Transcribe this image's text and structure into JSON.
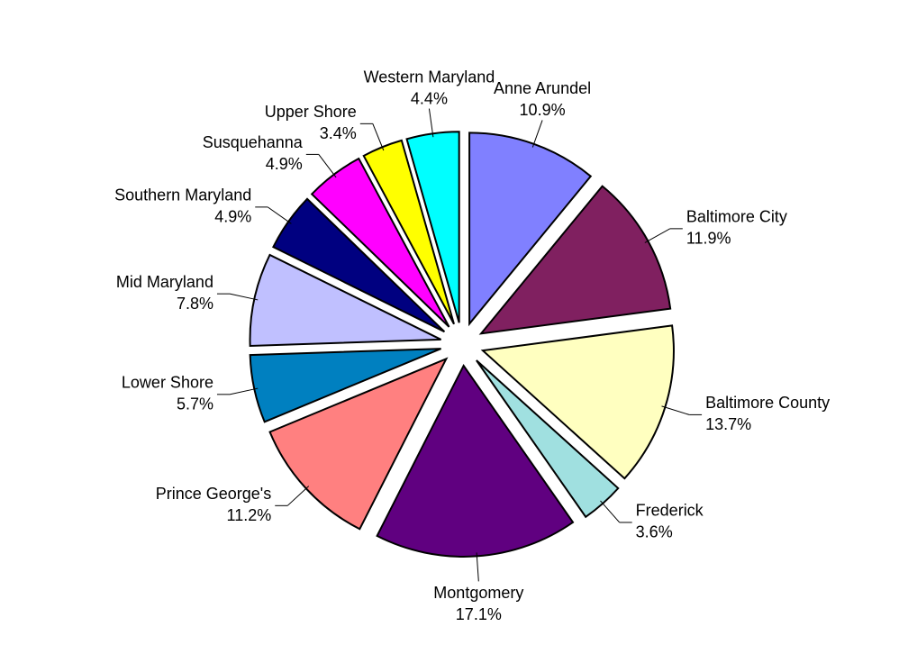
{
  "chart_data": {
    "type": "pie",
    "categories": [
      "Anne Arundel",
      "Baltimore City",
      "Baltimore County",
      "Frederick",
      "Montgomery",
      "Prince George's",
      "Lower Shore",
      "Mid Maryland",
      "Southern Maryland",
      "Susquehanna",
      "Upper Shore",
      "Western Maryland"
    ],
    "values": [
      10.9,
      11.9,
      13.7,
      3.6,
      17.1,
      11.2,
      5.7,
      7.8,
      4.9,
      4.9,
      3.4,
      4.4
    ],
    "value_labels": [
      "10.9%",
      "11.9%",
      "13.7%",
      "3.6%",
      "17.1%",
      "11.2%",
      "5.7%",
      "7.8%",
      "4.9%",
      "4.9%",
      "3.4%",
      "4.4%"
    ],
    "colors": [
      "#8080ff",
      "#802060",
      "#ffffc0",
      "#a0e0e0",
      "#600080",
      "#ff8080",
      "#0080c0",
      "#c0c0ff",
      "#000080",
      "#ff00ff",
      "#ffff00",
      "#00ffff"
    ]
  }
}
